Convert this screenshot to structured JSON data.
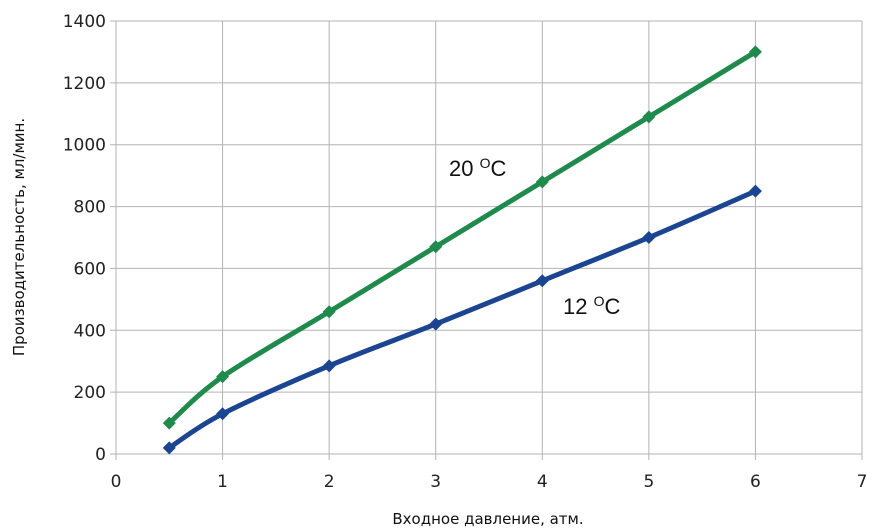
{
  "chart_data": {
    "type": "line",
    "title": "",
    "xlabel": "Входное давление, атм.",
    "ylabel": "Производительность, мл/мин.",
    "xlim": [
      0,
      7
    ],
    "ylim": [
      0,
      1400
    ],
    "x_ticks": [
      "0",
      "1",
      "2",
      "3",
      "4",
      "5",
      "6",
      "7"
    ],
    "y_ticks": [
      "0",
      "200",
      "400",
      "600",
      "800",
      "1000",
      "1200",
      "1400"
    ],
    "grid": true,
    "legend": "none",
    "series": [
      {
        "name": "20 °C",
        "label_text": "20 ",
        "label_sup": "O",
        "label_unit": "C",
        "color": "#1f8a4c",
        "x": [
          0.5,
          1,
          2,
          3,
          4,
          5,
          6
        ],
        "y": [
          100,
          250,
          460,
          670,
          880,
          1090,
          1300
        ]
      },
      {
        "name": "12 °C",
        "label_text": "12 ",
        "label_sup": "O",
        "label_unit": "C",
        "color": "#1c4591",
        "x": [
          0.5,
          1,
          2,
          3,
          4,
          5,
          6
        ],
        "y": [
          20,
          130,
          285,
          420,
          560,
          700,
          850
        ]
      }
    ]
  }
}
